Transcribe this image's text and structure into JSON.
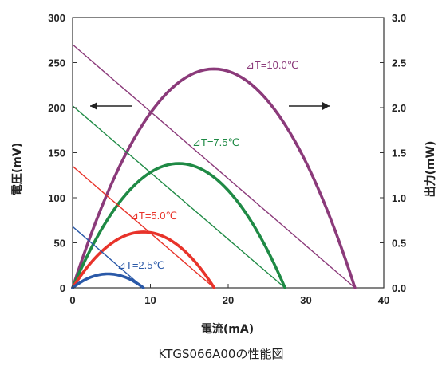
{
  "chart_data": {
    "type": "line",
    "caption": "KTGS066A00の性能図",
    "xlabel": "電流(mA)",
    "ylabel_left": "電圧(mV)",
    "ylabel_right": "出力(mW)",
    "xlim": [
      0,
      40
    ],
    "ylim_left": [
      0,
      300
    ],
    "ylim_right": [
      0,
      3.0
    ],
    "x_ticks": [
      "0",
      "10",
      "20",
      "30",
      "40"
    ],
    "y_ticks_left": [
      "0",
      "50",
      "100",
      "150",
      "200",
      "250",
      "300"
    ],
    "y_ticks_right": [
      "0.0",
      "0.5",
      "1.0",
      "1.5",
      "2.0",
      "2.5",
      "3.0"
    ],
    "grid": false,
    "series": [
      {
        "name": "⊿T=10.0℃",
        "color": "#8b3a7a",
        "voltage_line": {
          "x": [
            0,
            36.3
          ],
          "y": [
            270,
            0
          ]
        },
        "power_curve": {
          "x": [
            0,
            18.1,
            36.3
          ],
          "peak_mW": 2.43
        }
      },
      {
        "name": "⊿T=7.5℃",
        "color": "#1f8a45",
        "voltage_line": {
          "x": [
            0,
            27.3
          ],
          "y": [
            202,
            0
          ]
        },
        "power_curve": {
          "x": [
            0,
            13.7,
            27.3
          ],
          "peak_mW": 1.38
        }
      },
      {
        "name": "⊿T=5.0℃",
        "color": "#e8332a",
        "voltage_line": {
          "x": [
            0,
            18.2
          ],
          "y": [
            135,
            0
          ]
        },
        "power_curve": {
          "x": [
            0,
            9.1,
            18.2
          ],
          "peak_mW": 0.62
        }
      },
      {
        "name": "⊿T=2.5℃",
        "color": "#2a59a8",
        "voltage_line": {
          "x": [
            0,
            9.1
          ],
          "y": [
            68,
            0
          ]
        },
        "power_curve": {
          "x": [
            0,
            4.5,
            9.1
          ],
          "peak_mW": 0.155
        }
      }
    ],
    "annotations": [
      {
        "type": "arrow",
        "direction": "left",
        "meaning": "voltage-axis"
      },
      {
        "type": "arrow",
        "direction": "right",
        "meaning": "power-axis"
      }
    ]
  }
}
